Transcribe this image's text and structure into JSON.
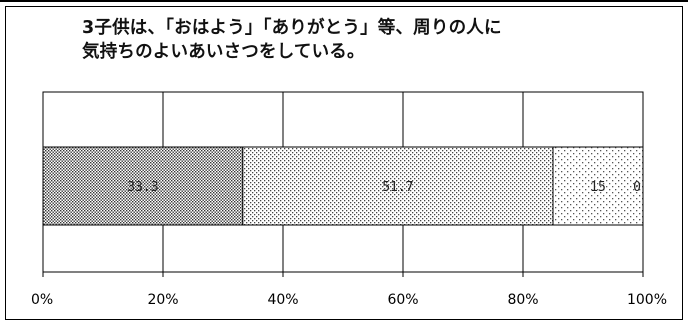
{
  "chart_data": {
    "type": "bar",
    "orientation": "horizontal",
    "stacked": true,
    "percent_stacked": true,
    "title_lines": [
      "3子供は、「おはよう」「ありがとう」等、周りの人に",
      "気持ちのよいあいさつをしている。"
    ],
    "series": [
      {
        "values": [
          33.3
        ],
        "pattern": "dense-dots",
        "label": "33.3"
      },
      {
        "values": [
          51.7
        ],
        "pattern": "medium-dots",
        "label": "51.7"
      },
      {
        "values": [
          15
        ],
        "pattern": "sparse-dots",
        "label": "15"
      },
      {
        "values": [
          0
        ],
        "pattern": "none",
        "label": "0"
      }
    ],
    "xlim": [
      0,
      100
    ],
    "x_ticks": [
      "0%",
      "20%",
      "40%",
      "60%",
      "80%",
      "100%"
    ],
    "grid": true,
    "legend": "none"
  }
}
